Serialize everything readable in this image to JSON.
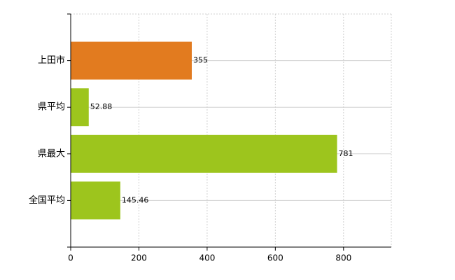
{
  "chart_data": {
    "type": "hbar",
    "categories": [
      "上田市",
      "県平均",
      "県最大",
      "全国平均"
    ],
    "values": [
      355,
      52.88,
      781,
      145.46
    ],
    "colors": [
      "#e27b1f",
      "#9dc51d",
      "#9dc51d",
      "#9dc51d"
    ],
    "xlim": [
      0,
      940
    ],
    "xticks": [
      0,
      200,
      400,
      600,
      800
    ],
    "grid": true
  }
}
